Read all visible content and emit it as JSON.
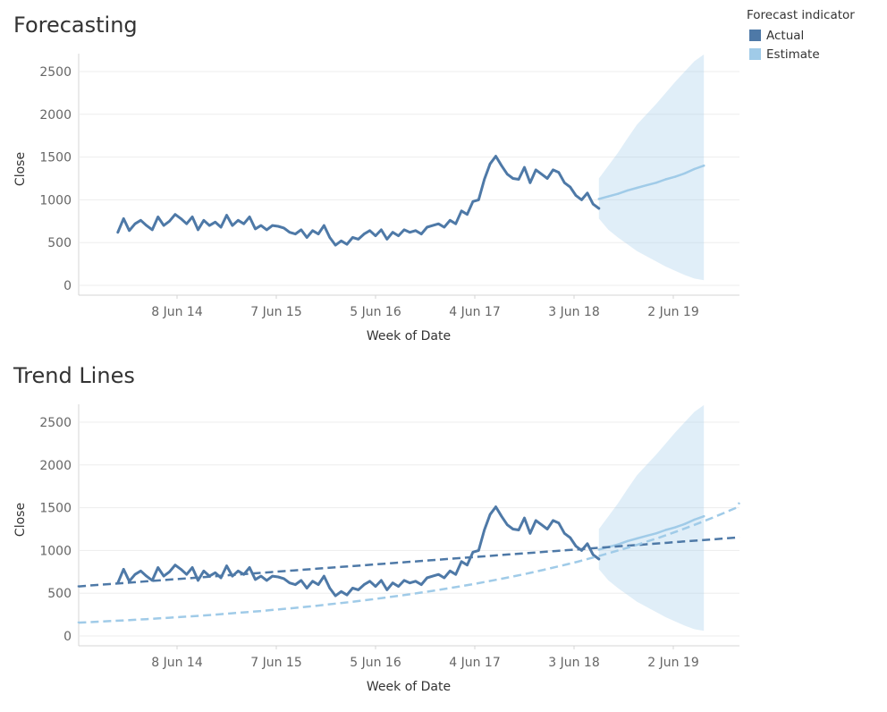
{
  "chart_data": [
    {
      "type": "line",
      "title": "Forecasting",
      "xlabel": "Week of Date",
      "ylabel": "Close",
      "ylim": [
        0,
        2700
      ],
      "yticks": [
        0,
        500,
        1000,
        1500,
        2000,
        2500
      ],
      "xticks": [
        "8 Jun 14",
        "7 Jun 15",
        "5 Jun 16",
        "4 Jun 17",
        "3 Jun 18",
        "2 Jun 19"
      ],
      "grid": true,
      "series": [
        {
          "name": "Actual",
          "color": "#4e79a7",
          "x": [
            "2013-11-03",
            "2013-11-24",
            "2013-12-15",
            "2014-01-05",
            "2014-01-26",
            "2014-02-16",
            "2014-03-09",
            "2014-03-30",
            "2014-04-20",
            "2014-05-11",
            "2014-06-01",
            "2014-06-22",
            "2014-07-13",
            "2014-08-03",
            "2014-08-24",
            "2014-09-14",
            "2014-10-05",
            "2014-10-26",
            "2014-11-16",
            "2014-12-07",
            "2014-12-28",
            "2015-01-18",
            "2015-02-08",
            "2015-03-01",
            "2015-03-22",
            "2015-04-12",
            "2015-05-03",
            "2015-05-24",
            "2015-06-14",
            "2015-07-05",
            "2015-07-26",
            "2015-08-16",
            "2015-09-06",
            "2015-09-27",
            "2015-10-18",
            "2015-11-08",
            "2015-11-29",
            "2015-12-20",
            "2016-01-10",
            "2016-01-31",
            "2016-02-21",
            "2016-03-13",
            "2016-04-03",
            "2016-04-24",
            "2016-05-15",
            "2016-06-05",
            "2016-06-26",
            "2016-07-17",
            "2016-08-07",
            "2016-08-28",
            "2016-09-18",
            "2016-10-09",
            "2016-10-30",
            "2016-11-20",
            "2016-12-11",
            "2017-01-01",
            "2017-01-22",
            "2017-02-12",
            "2017-03-05",
            "2017-03-26",
            "2017-04-16",
            "2017-05-07",
            "2017-05-28",
            "2017-06-18",
            "2017-07-09",
            "2017-07-30",
            "2017-08-20",
            "2017-09-10",
            "2017-10-01",
            "2017-10-22",
            "2017-11-12",
            "2017-12-03",
            "2017-12-24",
            "2018-01-14",
            "2018-02-04",
            "2018-02-25",
            "2018-03-18",
            "2018-04-08",
            "2018-04-29",
            "2018-05-20",
            "2018-06-10",
            "2018-07-01",
            "2018-07-22",
            "2018-08-12",
            "2018-09-02"
          ],
          "y": [
            620,
            780,
            640,
            720,
            760,
            700,
            650,
            800,
            700,
            750,
            830,
            780,
            720,
            800,
            650,
            760,
            700,
            740,
            680,
            820,
            700,
            760,
            720,
            800,
            660,
            700,
            650,
            700,
            690,
            670,
            620,
            600,
            650,
            560,
            640,
            600,
            700,
            560,
            470,
            520,
            480,
            560,
            540,
            600,
            640,
            580,
            650,
            540,
            620,
            580,
            650,
            620,
            640,
            600,
            680,
            700,
            720,
            680,
            760,
            720,
            870,
            830,
            980,
            1000,
            1240,
            1420,
            1510,
            1400,
            1300,
            1250,
            1240,
            1380,
            1200,
            1350,
            1300,
            1250,
            1350,
            1320,
            1200,
            1150,
            1050,
            1000,
            1080,
            950,
            900
          ]
        },
        {
          "name": "Estimate",
          "color": "#a0cbe8",
          "x": [
            "2018-09-02",
            "2018-10-07",
            "2018-11-11",
            "2018-12-16",
            "2019-01-20",
            "2019-02-24",
            "2019-03-31",
            "2019-05-05",
            "2019-06-09",
            "2019-07-14",
            "2019-08-18",
            "2019-09-22"
          ],
          "y": [
            1010,
            1040,
            1070,
            1110,
            1140,
            1170,
            1200,
            1240,
            1270,
            1310,
            1360,
            1400
          ],
          "upper": [
            1250,
            1400,
            1550,
            1720,
            1880,
            2000,
            2120,
            2250,
            2380,
            2500,
            2620,
            2700
          ],
          "lower": [
            780,
            650,
            560,
            480,
            400,
            340,
            280,
            220,
            170,
            120,
            80,
            60
          ]
        }
      ]
    },
    {
      "type": "line",
      "title": "Trend Lines",
      "xlabel": "Week of Date",
      "ylabel": "Close",
      "ylim": [
        0,
        2700
      ],
      "yticks": [
        0,
        500,
        1000,
        1500,
        2000,
        2500
      ],
      "xticks": [
        "8 Jun 14",
        "7 Jun 15",
        "5 Jun 16",
        "4 Jun 17",
        "3 Jun 18",
        "2 Jun 19"
      ],
      "grid": true,
      "trend_lines": [
        {
          "series": "Actual",
          "kind": "linear",
          "x": [
            "2013-05-01",
            "2020-03-01"
          ],
          "y": [
            570,
            1160
          ]
        },
        {
          "series": "Estimate",
          "kind": "exponential",
          "x": [
            "2013-05-01",
            "2020-03-01"
          ],
          "y": [
            150,
            1560
          ]
        }
      ]
    }
  ],
  "legend": {
    "title": "Forecast indicator",
    "placement": "top-right",
    "items": [
      {
        "label": "Actual",
        "color": "#4e79a7"
      },
      {
        "label": "Estimate",
        "color": "#a0cbe8"
      }
    ]
  }
}
